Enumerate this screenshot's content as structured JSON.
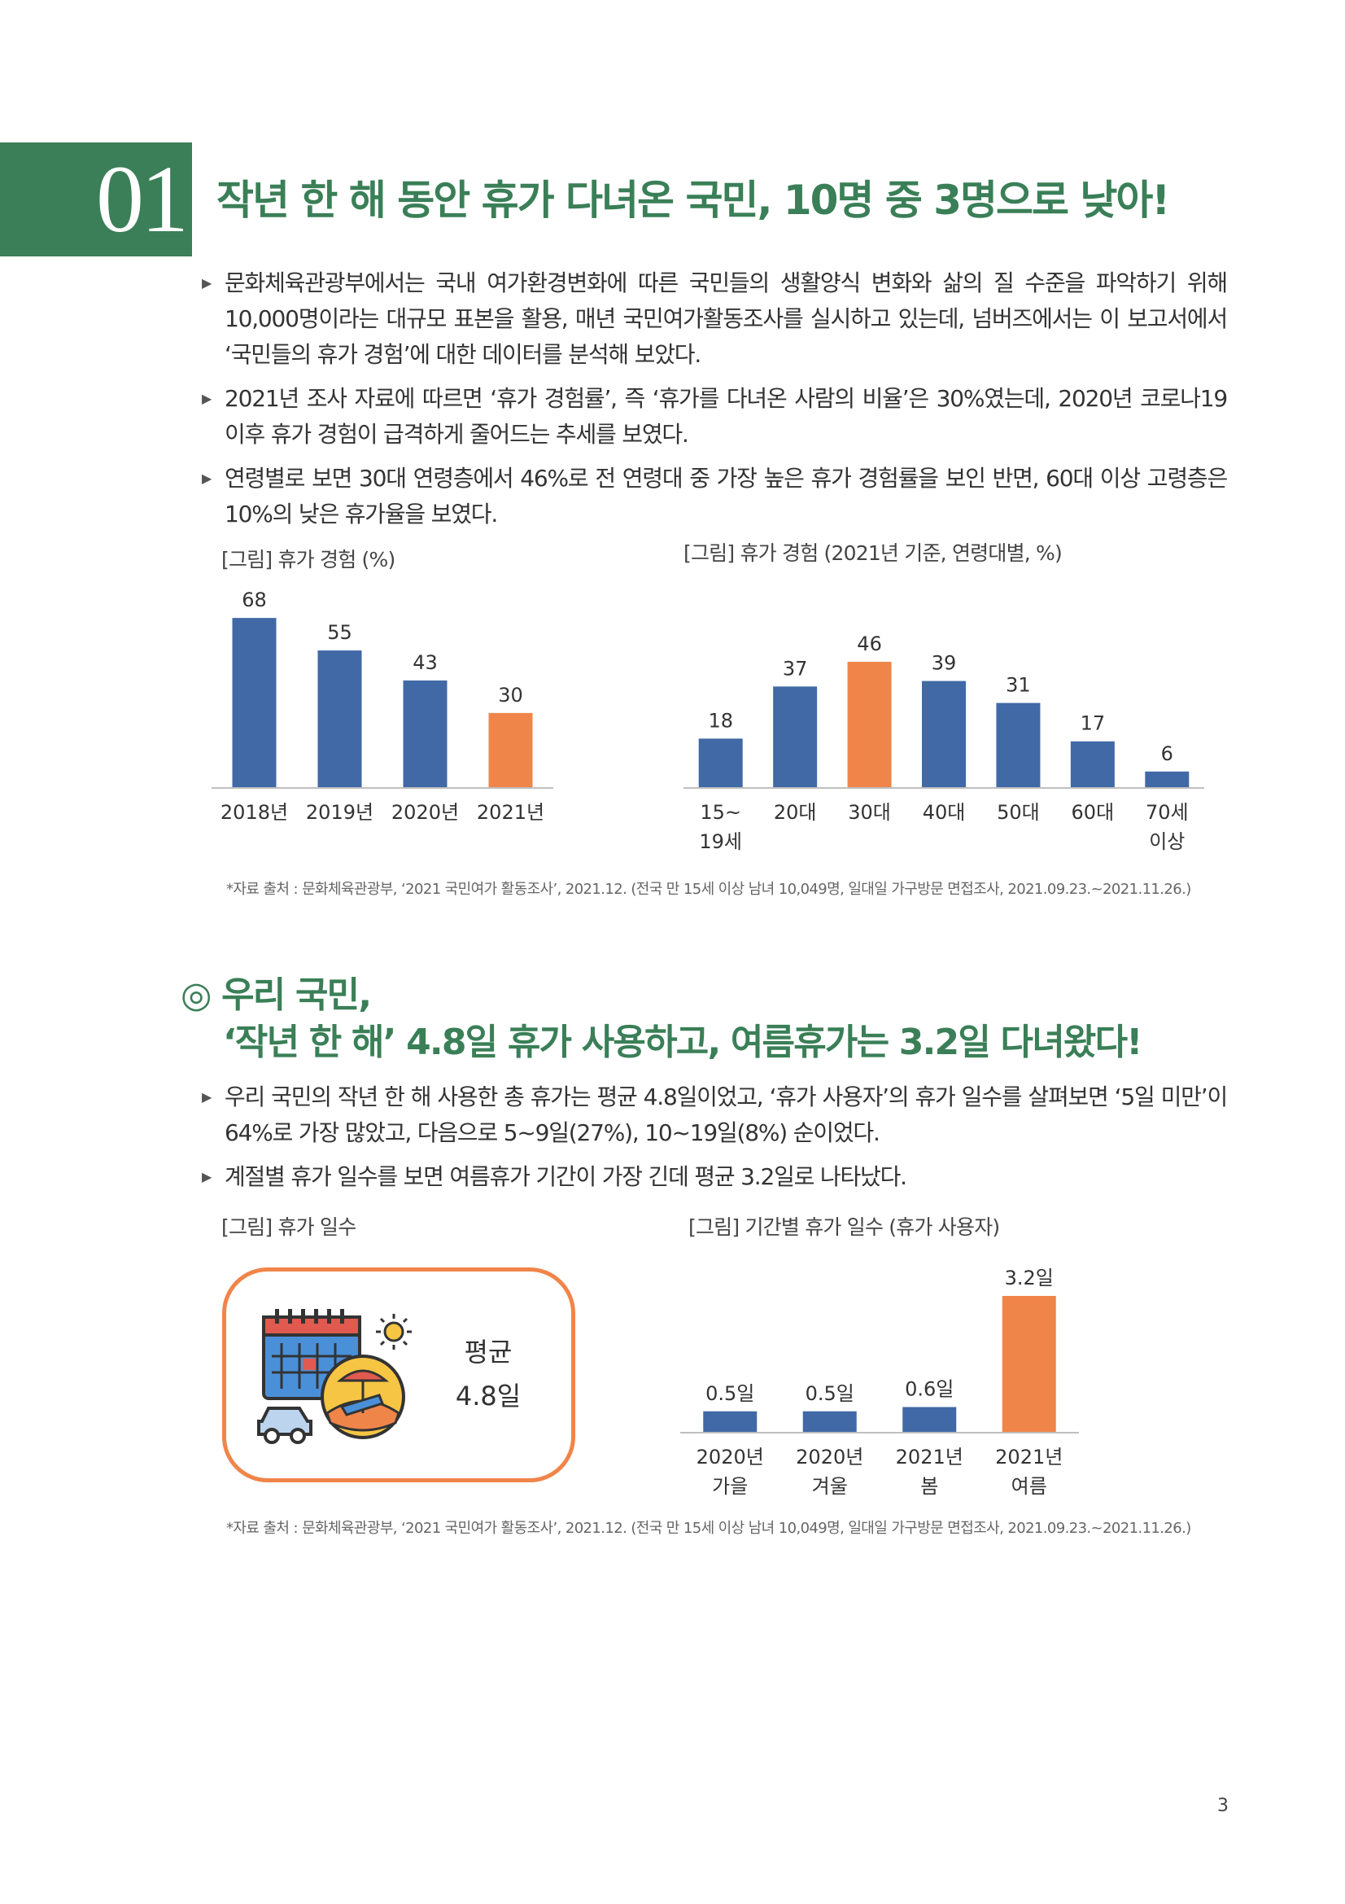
{
  "section1": {
    "number": "01",
    "title": "작년 한 해 동안 휴가 다녀온 국민, 10명 중 3명으로 낮아!",
    "bullets": [
      "문화체육관광부에서는 국내 여가환경변화에 따른 국민들의 생활양식 변화와 삶의 질 수준을 파악하기 위해 10,000명이라는 대규모 표본을 활용, 매년 국민여가활동조사를 실시하고 있는데, 넘버즈에서는 이 보고서에서 ‘국민들의 휴가 경험’에 대한 데이터를 분석해 보았다.",
      "2021년 조사 자료에 따르면 ‘휴가 경험률’, 즉 ‘휴가를 다녀온 사람의 비율’은 30%였는데, 2020년 코로나19 이후 휴가 경험이 급격하게 줄어드는 추세를 보였다.",
      "연령별로 보면 30대 연령층에서 46%로 전 연령대 중 가장 높은 휴가 경험률을 보인 반면, 60대 이상 고령층은 10%의 낮은 휴가율을 보였다."
    ],
    "fig1_label": "[그림] 휴가 경험 (%)",
    "fig2_label": "[그림] 휴가 경험 (2021년 기준, 연령대별, %)",
    "source": "*자료 출처 : 문화체육관광부, ‘2021 국민여가 활동조사’, 2021.12. (전국 만 15세 이상 남녀 10,049명, 일대일 가구방문 면접조사, 2021.09.23.~2021.11.26.)"
  },
  "section2": {
    "mark": "◎",
    "title_line1": "우리 국민,",
    "title_line2": "‘작년 한 해’ 4.8일 휴가 사용하고, 여름휴가는 3.2일 다녀왔다!",
    "bullets": [
      "우리 국민의 작년 한 해 사용한 총 휴가는 평균 4.8일이었고, ‘휴가 사용자’의 휴가 일수를 살펴보면 ‘5일 미만’이 64%로 가장 많았고, 다음으로 5~9일(27%), 10~19일(8%) 순이었다.",
      "계절별 휴가 일수를 보면 여름휴가 기간이 가장 긴데 평균 3.2일로 나타났다."
    ],
    "fig3_label": "[그림] 휴가 일수",
    "fig4_label": "[그림] 기간별 휴가 일수 (휴가 사용자)",
    "avg_label": "평균",
    "avg_value": "4.8일",
    "source": "*자료 출처 : 문화체육관광부, ‘2021 국민여가 활동조사’, 2021.12. (전국 만 15세 이상 남녀 10,049명, 일대일 가구방문 면접조사, 2021.09.23.~2021.11.26.)"
  },
  "page_number": "3",
  "colors": {
    "green": "#3a7f57",
    "blue": "#4169a6",
    "orange": "#f0854a"
  },
  "chart_data": [
    {
      "type": "bar",
      "title": "[그림] 휴가 경험 (%)",
      "categories": [
        "2018년",
        "2019년",
        "2020년",
        "2021년"
      ],
      "values": [
        68,
        55,
        43,
        30
      ],
      "data_labels": [
        "68",
        "55",
        "43",
        "30"
      ],
      "highlight_index": 3,
      "ylim": [
        0,
        70
      ],
      "grid": false,
      "legend": "none"
    },
    {
      "type": "bar",
      "title": "[그림] 휴가 경험 (2021년 기준, 연령대별, %)",
      "categories": [
        [
          "15~",
          "19세"
        ],
        [
          "20대"
        ],
        [
          "30대"
        ],
        [
          "40대"
        ],
        [
          "50대"
        ],
        [
          "60대"
        ],
        [
          "70세",
          "이상"
        ]
      ],
      "values": [
        18,
        37,
        46,
        39,
        31,
        17,
        6
      ],
      "data_labels": [
        "18",
        "37",
        "46",
        "39",
        "31",
        "17",
        "6"
      ],
      "highlight_index": 2,
      "ylim": [
        0,
        46
      ],
      "grid": false,
      "legend": "none"
    },
    {
      "type": "bar",
      "title": "[그림] 기간별 휴가 일수 (휴가 사용자)",
      "categories": [
        [
          "2020년",
          "가을"
        ],
        [
          "2020년",
          "겨울"
        ],
        [
          "2021년",
          "봄"
        ],
        [
          "2021년",
          "여름"
        ]
      ],
      "values": [
        0.5,
        0.5,
        0.6,
        3.2
      ],
      "data_labels": [
        "0.5일",
        "0.5일",
        "0.6일",
        "3.2일"
      ],
      "highlight_index": 3,
      "ylim": [
        0,
        3.2
      ],
      "grid": false,
      "legend": "none"
    }
  ]
}
